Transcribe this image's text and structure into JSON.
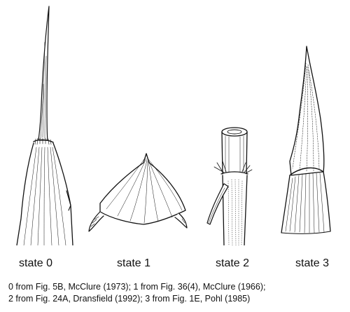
{
  "states": [
    {
      "label": "state 0"
    },
    {
      "label": "state 1"
    },
    {
      "label": "state 2"
    },
    {
      "label": "state 3"
    }
  ],
  "caption": {
    "line1": "0 from Fig. 5B, McClure (1973); 1 from Fig. 36(4), McClure (1966);",
    "line2": "2 from Fig. 24A, Dransfield (1992); 3 from Fig. 1E, Pohl (1985)"
  }
}
